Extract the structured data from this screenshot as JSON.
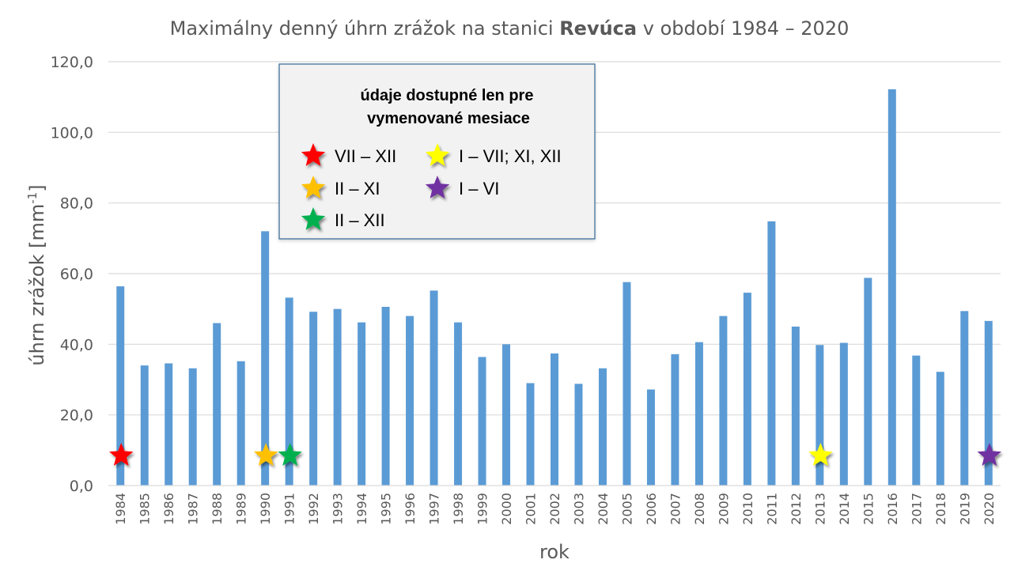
{
  "chart_data": {
    "type": "bar",
    "title": {
      "prefix": "Maximálny denný úhrn zrážok na stanici ",
      "bold": "Revúca",
      "suffix": " v období 1984 – 2020"
    },
    "xlabel": "rok",
    "ylabel": "úhrn zrážok [mm",
    "ylabel_superscript": "-1",
    "ylabel_close": "]",
    "ylim": [
      0,
      120
    ],
    "yticks": [
      "0,0",
      "20,0",
      "40,0",
      "60,0",
      "80,0",
      "100,0",
      "120,0"
    ],
    "ytick_values": [
      0,
      20,
      40,
      60,
      80,
      100,
      120
    ],
    "grid": true,
    "bar_color": "#5b9bd5",
    "categories": [
      "1984",
      "1985",
      "1986",
      "1987",
      "1988",
      "1989",
      "1990",
      "1991",
      "1992",
      "1993",
      "1994",
      "1995",
      "1996",
      "1997",
      "1998",
      "1999",
      "2000",
      "2001",
      "2002",
      "2003",
      "2004",
      "2005",
      "2006",
      "2007",
      "2008",
      "2009",
      "2010",
      "2011",
      "2012",
      "2013",
      "2014",
      "2015",
      "2016",
      "2017",
      "2018",
      "2019",
      "2020"
    ],
    "values": [
      56.4,
      34.0,
      34.6,
      33.2,
      46.0,
      35.2,
      72.0,
      53.2,
      49.2,
      50.0,
      46.2,
      50.6,
      48.0,
      55.2,
      46.2,
      36.4,
      40.0,
      29.0,
      37.4,
      28.8,
      33.2,
      57.6,
      27.2,
      37.2,
      40.6,
      48.0,
      54.6,
      74.8,
      45.0,
      39.8,
      40.4,
      58.8,
      112.2,
      36.8,
      32.2,
      49.4,
      46.6
    ],
    "markers": [
      {
        "year": "1984",
        "value": 8.5,
        "color": "#ff0000"
      },
      {
        "year": "1990",
        "value": 8.5,
        "color": "#ffc000"
      },
      {
        "year": "1991",
        "value": 8.5,
        "color": "#00b050"
      },
      {
        "year": "2013",
        "value": 8.5,
        "color": "#ffff00"
      },
      {
        "year": "2020",
        "value": 8.5,
        "color": "#7030a0"
      }
    ],
    "legend": {
      "heading_line1": "údaje dostupné len pre",
      "heading_line2": "vymenované mesiace",
      "placement": "top-center",
      "items": [
        {
          "label": "VII – XII",
          "color": "#ff0000"
        },
        {
          "label": "II – XI",
          "color": "#ffc000"
        },
        {
          "label": "II – XII",
          "color": "#00b050"
        },
        {
          "label": "I – VII; XI, XII",
          "color": "#ffff00"
        },
        {
          "label": "I – VI",
          "color": "#7030a0"
        }
      ]
    }
  }
}
